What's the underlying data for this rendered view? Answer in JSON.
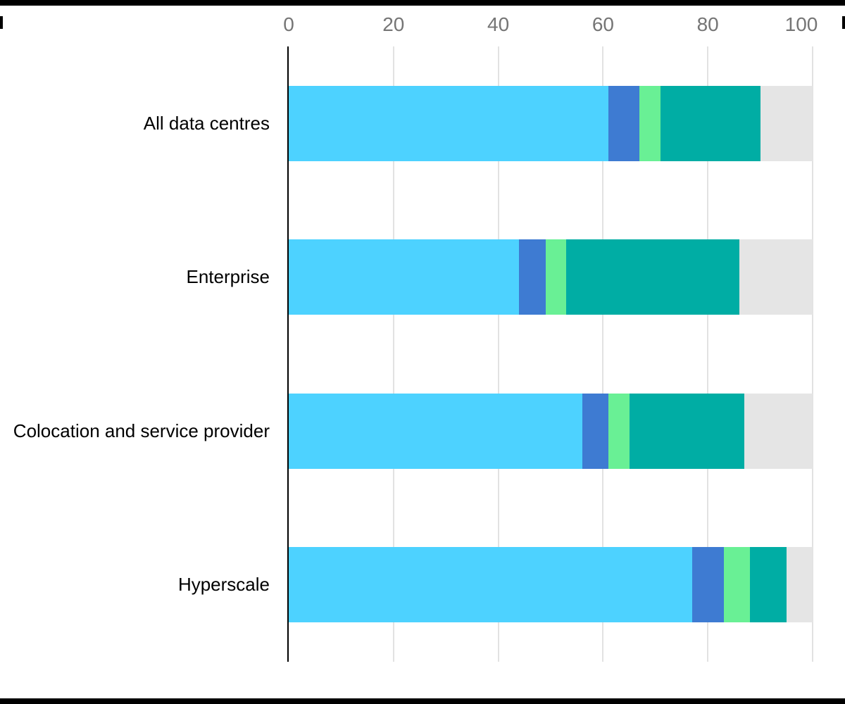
{
  "chart_data": {
    "type": "bar",
    "orientation": "horizontal",
    "stacked": true,
    "title": "",
    "xlabel": "",
    "ylabel": "",
    "xlim": [
      0,
      100
    ],
    "x_ticks": [
      0,
      20,
      40,
      60,
      80,
      100
    ],
    "axis_position": "top",
    "grid": true,
    "legend_visible": false,
    "categories": [
      "All data centres",
      "Enterprise",
      "Colocation and service provider",
      "Hyperscale"
    ],
    "series": [
      {
        "name": "segment-1-light-blue",
        "color": "#4DD2FF",
        "values": [
          61,
          44,
          56,
          77
        ]
      },
      {
        "name": "segment-2-blue",
        "color": "#3E7BD2",
        "values": [
          6,
          5,
          5,
          6
        ]
      },
      {
        "name": "segment-3-green",
        "color": "#69F095",
        "values": [
          4,
          4,
          4,
          5
        ]
      },
      {
        "name": "segment-4-teal",
        "color": "#00ADA4",
        "values": [
          19,
          33,
          22,
          7
        ]
      },
      {
        "name": "segment-5-grey",
        "color": "#E5E5E5",
        "values": [
          10,
          14,
          13,
          5
        ]
      }
    ]
  },
  "decorations": {
    "top_crop_bar_color": "#000000",
    "bottom_crop_bar_color": "#000000",
    "tick_label_color": "#757575",
    "category_label_color": "#000000",
    "gridline_color": "#E2E2E2",
    "axis_line_color": "#000000"
  }
}
